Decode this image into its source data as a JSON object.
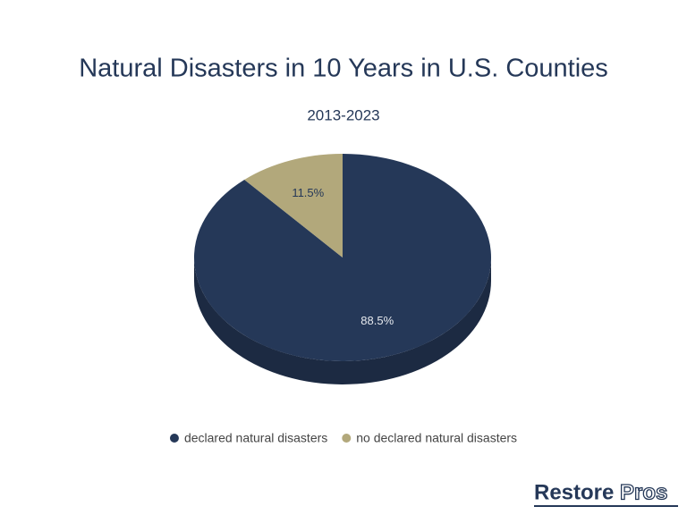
{
  "chart_data": {
    "type": "pie",
    "title": "Natural Disasters in 10 Years in U.S. Counties",
    "subtitle": "2013-2023",
    "categories": [
      "declared natural disasters",
      "no declared natural disasters"
    ],
    "values": [
      88.5,
      11.5
    ],
    "value_labels": [
      "88.5%",
      "11.5%"
    ],
    "colors": [
      "#253858",
      "#b2a87b"
    ],
    "legend": "bottom"
  },
  "logo": {
    "first": "Restore",
    "second": "Pros"
  }
}
